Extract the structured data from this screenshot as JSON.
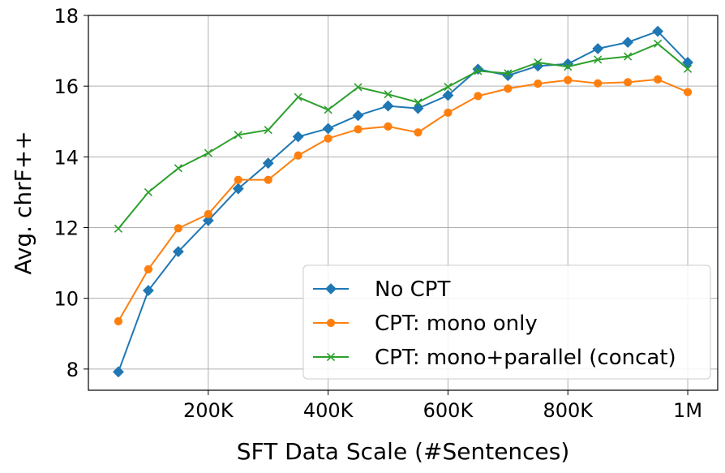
{
  "chart_data": {
    "type": "line",
    "xlabel": "SFT Data Scale (#Sentences)",
    "ylabel": "Avg. chrF++",
    "xlim": [
      0,
      1050000
    ],
    "ylim": [
      7.4,
      18
    ],
    "grid": true,
    "legend_position": "bottom-right",
    "x_ticks": [
      {
        "value": 200000,
        "label": "200K"
      },
      {
        "value": 400000,
        "label": "400K"
      },
      {
        "value": 600000,
        "label": "600K"
      },
      {
        "value": 800000,
        "label": "800K"
      },
      {
        "value": 1000000,
        "label": "1M"
      }
    ],
    "y_ticks": [
      {
        "value": 8,
        "label": "8"
      },
      {
        "value": 10,
        "label": "10"
      },
      {
        "value": 12,
        "label": "12"
      },
      {
        "value": 14,
        "label": "14"
      },
      {
        "value": 16,
        "label": "16"
      },
      {
        "value": 18,
        "label": "18"
      }
    ],
    "x": [
      50000,
      100000,
      150000,
      200000,
      250000,
      300000,
      350000,
      400000,
      450000,
      500000,
      550000,
      600000,
      650000,
      700000,
      750000,
      800000,
      850000,
      900000,
      950000,
      1000000
    ],
    "series": [
      {
        "name": "No CPT",
        "color": "#1f77b4",
        "marker": "diamond",
        "values": [
          7.92,
          10.22,
          11.32,
          12.2,
          13.1,
          13.82,
          14.57,
          14.8,
          15.17,
          15.44,
          15.37,
          15.74,
          16.48,
          16.3,
          16.57,
          16.63,
          17.06,
          17.24,
          17.55,
          16.67
        ]
      },
      {
        "name": "CPT: mono only",
        "color": "#ff7f0e",
        "marker": "circle",
        "values": [
          9.35,
          10.82,
          11.98,
          12.38,
          13.35,
          13.35,
          14.04,
          14.52,
          14.78,
          14.86,
          14.69,
          15.25,
          15.72,
          15.93,
          16.07,
          16.17,
          16.08,
          16.11,
          16.19,
          15.83
        ]
      },
      {
        "name": "CPT: mono+parallel (concat)",
        "color": "#2ca02c",
        "marker": "x",
        "values": [
          11.97,
          13.0,
          13.68,
          14.11,
          14.62,
          14.76,
          15.69,
          15.33,
          15.97,
          15.77,
          15.54,
          15.98,
          16.43,
          16.36,
          16.67,
          16.55,
          16.75,
          16.84,
          17.2,
          16.49
        ]
      }
    ]
  }
}
